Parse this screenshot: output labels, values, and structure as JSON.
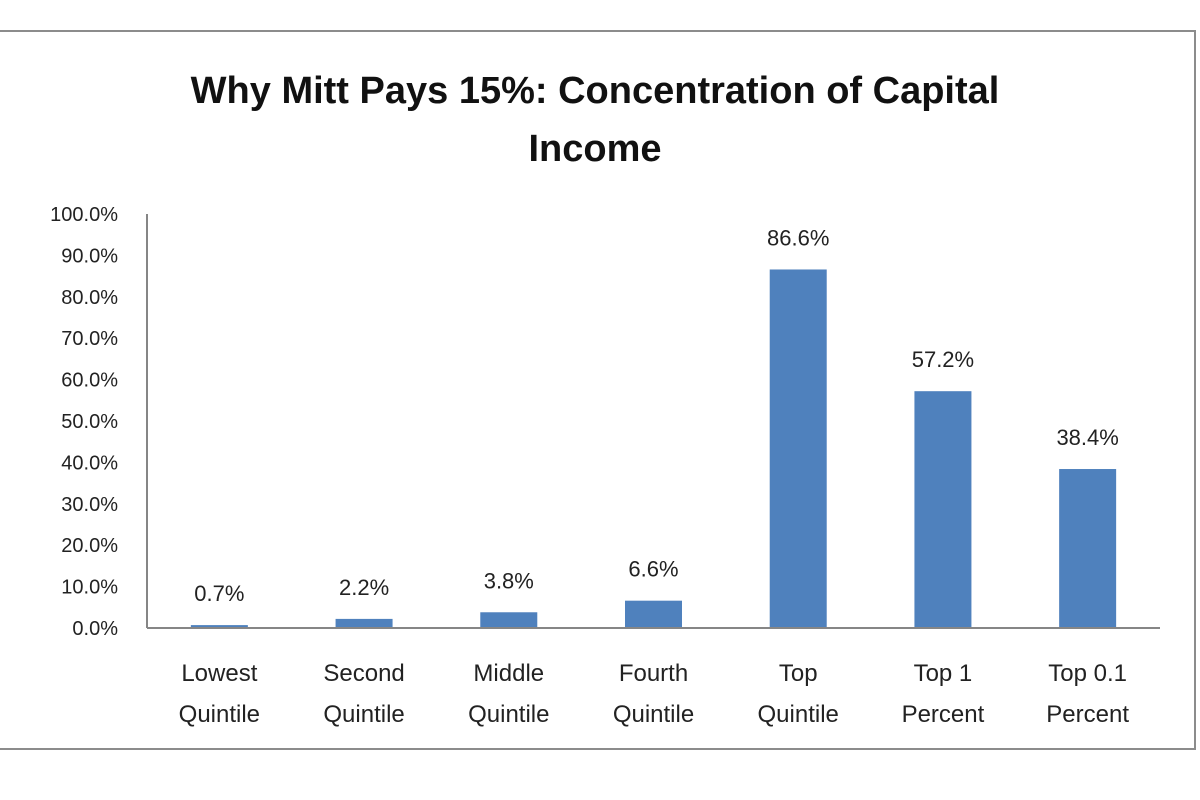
{
  "chart_data": {
    "type": "bar",
    "title": "Why Mitt Pays 15%: Concentration of Capital Income",
    "categories": [
      [
        "Lowest",
        "Quintile"
      ],
      [
        "Second",
        "Quintile"
      ],
      [
        "Middle",
        "Quintile"
      ],
      [
        "Fourth",
        "Quintile"
      ],
      [
        "Top",
        "Quintile"
      ],
      [
        "Top 1",
        "Percent"
      ],
      [
        "Top 0.1",
        "Percent"
      ]
    ],
    "values": [
      0.7,
      2.2,
      3.8,
      6.6,
      86.6,
      57.2,
      38.4
    ],
    "data_labels": [
      "0.7%",
      "2.2%",
      "3.8%",
      "6.6%",
      "86.6%",
      "57.2%",
      "38.4%"
    ],
    "ylim": [
      0,
      100
    ],
    "y_ticks": [
      "0.0%",
      "10.0%",
      "20.0%",
      "30.0%",
      "40.0%",
      "50.0%",
      "60.0%",
      "70.0%",
      "80.0%",
      "90.0%",
      "100.0%"
    ],
    "xlabel": "",
    "ylabel": "",
    "grid": false,
    "legend": "none",
    "bar_color": "#4f81bd"
  }
}
